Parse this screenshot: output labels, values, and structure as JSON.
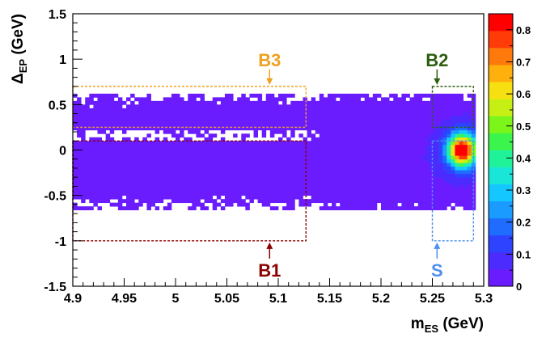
{
  "chart_data": {
    "type": "heatmap",
    "x_axis": {
      "title_main": "m",
      "title_sub": "ES",
      "title_unit": " (GeV)",
      "range": [
        4.9,
        5.3
      ],
      "ticks": [
        "4.9",
        "4.95",
        "5",
        "5.05",
        "5.1",
        "5.15",
        "5.2",
        "5.25",
        "5.3"
      ]
    },
    "y_axis": {
      "title_main": "Δ",
      "title_sub": "EP",
      "title_unit": " (GeV)",
      "range": [
        -1.5,
        1.5
      ],
      "ticks": [
        "-1.5",
        "-1",
        "-0.5",
        "0",
        "0.5",
        "1",
        "1.5"
      ]
    },
    "colorbar": {
      "range": [
        0,
        0.85
      ],
      "ticks": [
        "0",
        "0.1",
        "0.2",
        "0.3",
        "0.4",
        "0.5",
        "0.6",
        "0.7",
        "0.8"
      ],
      "colors": [
        "#6a1cff",
        "#4c2bff",
        "#2e43ff",
        "#1f6cff",
        "#1a9bff",
        "#14c8ff",
        "#1ae6d8",
        "#20f29a",
        "#3cf54c",
        "#7cf51a",
        "#c6f014",
        "#f7e011",
        "#ffb00d",
        "#ff7a0a",
        "#ff3c08",
        "#ff0000"
      ]
    },
    "density_model": {
      "background_level": 0.02,
      "background_x_range": [
        4.9,
        5.29
      ],
      "background_y_range": [
        -0.65,
        0.62
      ],
      "signal_peak": {
        "x": 5.279,
        "y": 0.0,
        "value": 0.85
      }
    },
    "regions": [
      {
        "name": "B1",
        "label": "B1",
        "x": [
          4.9,
          5.127
        ],
        "y": [
          -1.0,
          0.1
        ],
        "color": "#8b0000",
        "label_position": "below"
      },
      {
        "name": "B2",
        "label": "B2",
        "x": [
          5.25,
          5.29
        ],
        "y": [
          0.25,
          0.7
        ],
        "color": "#2e5e10",
        "label_position": "above"
      },
      {
        "name": "B3",
        "label": "B3",
        "x": [
          4.9,
          5.127
        ],
        "y": [
          0.25,
          0.7
        ],
        "color": "#f0a020",
        "label_position": "above"
      },
      {
        "name": "S",
        "label": "S",
        "x": [
          5.25,
          5.29
        ],
        "y": [
          -1.0,
          0.1
        ],
        "color": "#4f8fef",
        "label_position": "below"
      }
    ]
  }
}
